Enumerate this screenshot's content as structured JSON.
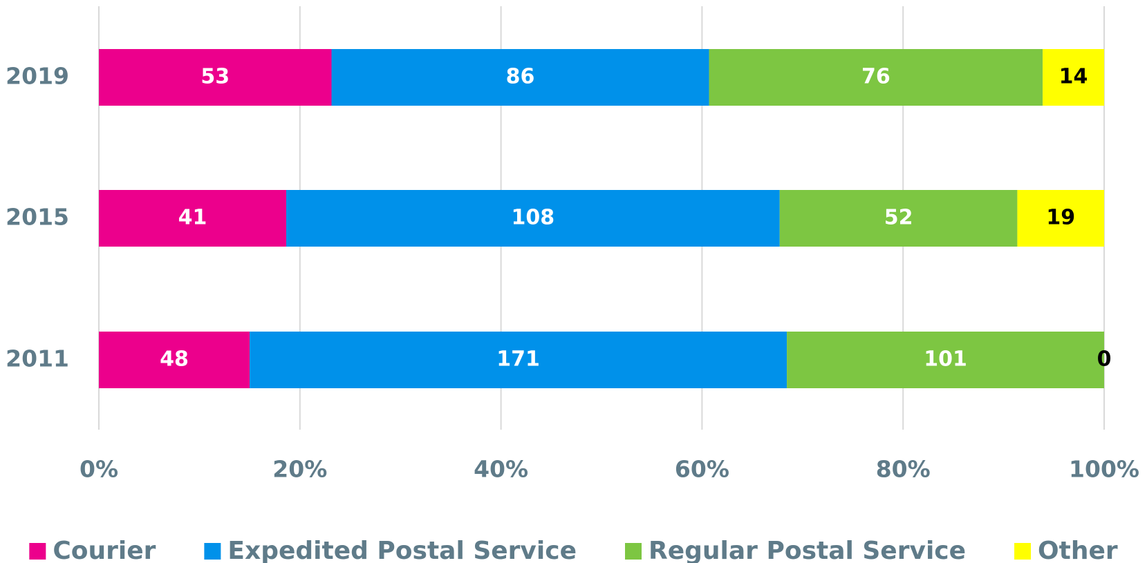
{
  "chart_data": {
    "type": "bar",
    "orientation": "horizontal",
    "stacking": "percent",
    "categories": [
      "2019",
      "2015",
      "2011"
    ],
    "series": [
      {
        "name": "Courier",
        "color": "#ec008c",
        "label_color": "#ffffff",
        "values": [
          53,
          41,
          48
        ]
      },
      {
        "name": "Expedited Postal Service",
        "color": "#0091ea",
        "label_color": "#ffffff",
        "values": [
          86,
          108,
          171
        ]
      },
      {
        "name": "Regular Postal Service",
        "color": "#7dc642",
        "label_color": "#ffffff",
        "values": [
          76,
          52,
          101
        ]
      },
      {
        "name": "Other",
        "color": "#ffff00",
        "label_color": "#000000",
        "values": [
          14,
          19,
          0
        ]
      }
    ],
    "xlim": [
      0,
      100
    ],
    "xticks": [
      {
        "value": 0,
        "label": "0%"
      },
      {
        "value": 20,
        "label": "20%"
      },
      {
        "value": 40,
        "label": "40%"
      },
      {
        "value": 60,
        "label": "60%"
      },
      {
        "value": 80,
        "label": "80%"
      },
      {
        "value": 100,
        "label": "100%"
      }
    ],
    "grid": true,
    "legend": "bottom"
  }
}
